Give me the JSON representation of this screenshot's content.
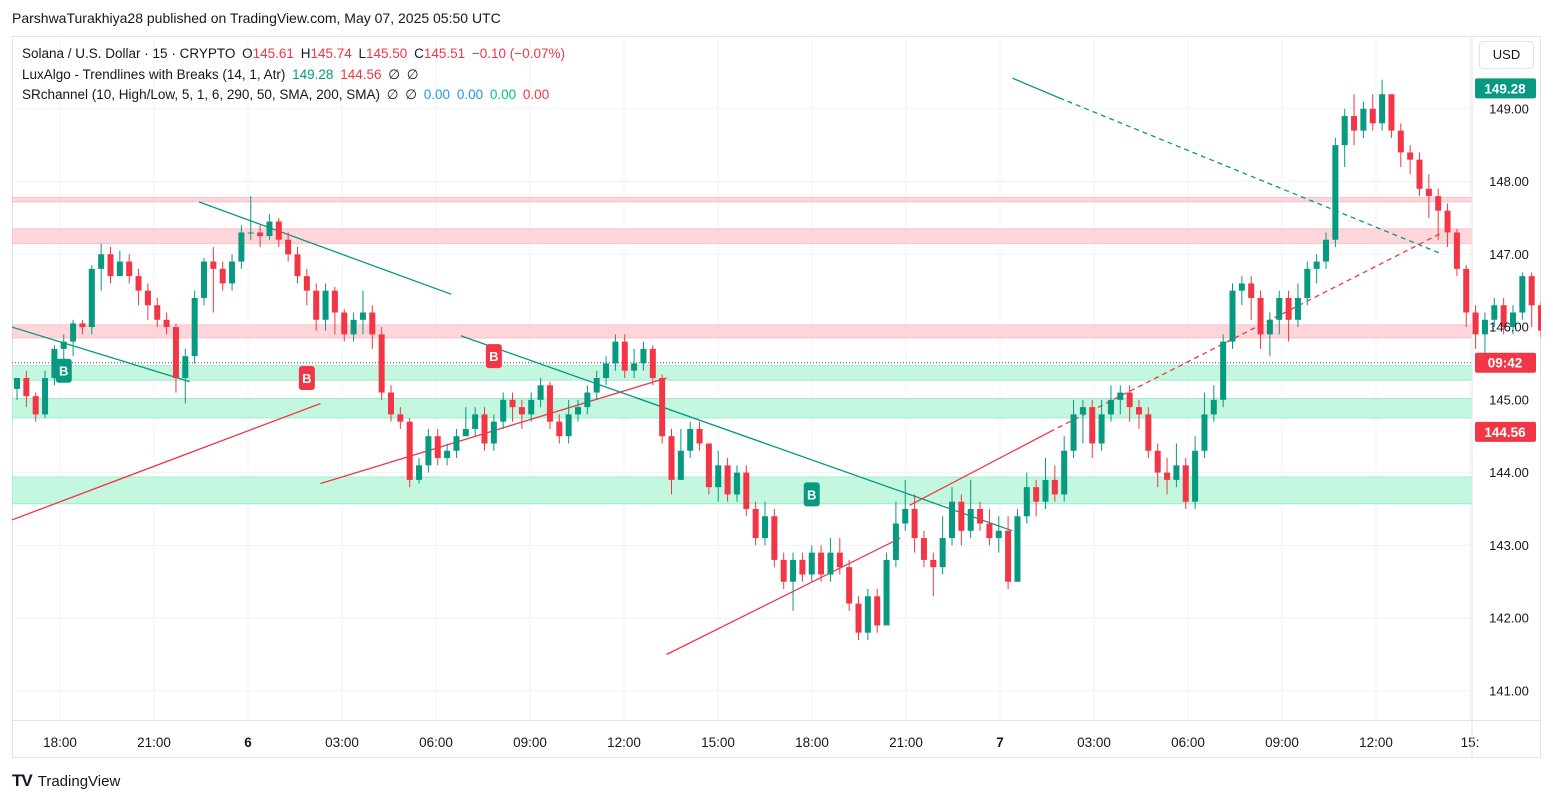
{
  "header": {
    "published": "ParshwaTurakhiya28 published on TradingView.com, May 07, 2025 05:50 UTC"
  },
  "legend": {
    "symbol": "Solana / U.S. Dollar · 15 · CRYPTO",
    "o_label": "O",
    "o": "145.61",
    "h_label": "H",
    "h": "145.74",
    "l_label": "L",
    "l": "145.50",
    "c_label": "C",
    "c": "145.51",
    "change": "−0.10 (−0.07%)",
    "ind1": "LuxAlgo - Trendlines with Breaks (14, 1, Atr)",
    "ind1_v1": "149.28",
    "ind1_v2": "144.56",
    "ind1_v3": "∅",
    "ind1_v4": "∅",
    "ind2": "SRchannel (10, High/Low, 5, 1, 6, 290, 50, SMA, 200, SMA)",
    "ind2_v1": "∅",
    "ind2_v2": "∅",
    "ind2_v3": "0.00",
    "ind2_v4": "0.00",
    "ind2_v5": "0.00",
    "ind2_v6": "0.00"
  },
  "currency": "USD",
  "footer": {
    "brand": "TradingView",
    "logo": "TV"
  },
  "colors": {
    "up": "#089981",
    "down": "#f23645",
    "res_zone": "#ffcdd2",
    "sup_zone": "#b9f6d9",
    "grid": "#f0f3fa"
  },
  "chart_data": {
    "type": "candlestick",
    "ylim": [
      140.6,
      150.0
    ],
    "y_ticks": [
      "141.00",
      "142.00",
      "143.00",
      "144.00",
      "145.00",
      "146.00",
      "147.00",
      "148.00",
      "149.00"
    ],
    "x_ticks": [
      "18:00",
      "21:00",
      "6",
      "03:00",
      "06:00",
      "09:00",
      "12:00",
      "15:00",
      "18:00",
      "21:00",
      "7",
      "03:00",
      "06:00",
      "09:00",
      "12:00",
      "15:"
    ],
    "price_labels": [
      {
        "text": "149.28",
        "value": 149.28,
        "color": "#089981"
      },
      {
        "text": "09:42",
        "value": 145.51,
        "color": "#f23645"
      },
      {
        "text": "144.56",
        "value": 144.56,
        "color": "#f23645"
      }
    ],
    "last_price": 145.51,
    "resistance_zones": [
      [
        147.72,
        147.78
      ],
      [
        147.15,
        147.35
      ],
      [
        145.85,
        146.03
      ]
    ],
    "support_zones": [
      [
        145.27,
        145.47
      ],
      [
        144.75,
        145.02
      ],
      [
        143.57,
        143.94
      ]
    ],
    "breakout_labels": [
      {
        "text": "B",
        "kind": "bull",
        "candle": 5,
        "price": 145.4
      },
      {
        "text": "B",
        "kind": "bear",
        "candle": 31,
        "price": 145.3
      },
      {
        "text": "B",
        "kind": "bear",
        "candle": 51,
        "price": 145.6
      },
      {
        "text": "B",
        "kind": "bull",
        "candle": 85,
        "price": 143.7
      }
    ],
    "trendlines": [
      {
        "color": "#089981",
        "dash": false,
        "from": [
          0,
          146.0
        ],
        "to": [
          19,
          145.25
        ]
      },
      {
        "color": "#089981",
        "dash": false,
        "from": [
          20,
          147.72
        ],
        "to": [
          47,
          146.45
        ]
      },
      {
        "color": "#089981",
        "dash": false,
        "from": [
          48,
          145.88
        ],
        "to": [
          107,
          143.2
        ]
      },
      {
        "color": "#089981",
        "dash": false,
        "from": [
          107,
          149.42
        ],
        "to": [
          112,
          149.15
        ]
      },
      {
        "color": "#089981",
        "dash": true,
        "from": [
          112,
          149.15
        ],
        "to": [
          153,
          147.0
        ]
      },
      {
        "color": "#f23645",
        "dash": false,
        "from": [
          0,
          143.35
        ],
        "to": [
          33,
          144.95
        ]
      },
      {
        "color": "#f23645",
        "dash": false,
        "from": [
          33,
          143.85
        ],
        "to": [
          70,
          145.3
        ]
      },
      {
        "color": "#f23645",
        "dash": false,
        "from": [
          70,
          141.5
        ],
        "to": [
          95,
          143.1
        ]
      },
      {
        "color": "#f23645",
        "dash": false,
        "from": [
          96,
          143.55
        ],
        "to": [
          111,
          144.56
        ]
      },
      {
        "color": "#f23645",
        "dash": true,
        "from": [
          111,
          144.56
        ],
        "to": [
          153,
          147.3
        ]
      }
    ],
    "candles": [
      [
        145.15,
        145.3,
        145.3,
        145.0
      ],
      [
        145.3,
        145.05,
        145.4,
        144.9
      ],
      [
        145.05,
        144.8,
        145.1,
        144.7
      ],
      [
        144.8,
        145.3,
        145.4,
        144.75
      ],
      [
        145.3,
        145.7,
        145.75,
        145.2
      ],
      [
        145.7,
        145.8,
        145.9,
        145.5
      ],
      [
        145.8,
        146.05,
        146.1,
        145.6
      ],
      [
        146.05,
        146.0,
        146.1,
        145.9
      ],
      [
        146.0,
        146.8,
        146.85,
        145.9
      ],
      [
        146.8,
        147.0,
        147.15,
        146.5
      ],
      [
        147.0,
        146.7,
        147.1,
        146.6
      ],
      [
        146.7,
        146.9,
        147.05,
        146.7
      ],
      [
        146.9,
        146.7,
        147.0,
        146.6
      ],
      [
        146.7,
        146.5,
        146.8,
        146.3
      ],
      [
        146.5,
        146.3,
        146.6,
        146.1
      ],
      [
        146.3,
        146.1,
        146.4,
        146.0
      ],
      [
        146.1,
        146.0,
        146.2,
        145.9
      ],
      [
        146.0,
        145.3,
        146.05,
        145.1
      ],
      [
        145.3,
        145.6,
        145.7,
        144.95
      ],
      [
        145.6,
        146.4,
        146.5,
        145.5
      ],
      [
        146.4,
        146.9,
        146.95,
        146.3
      ],
      [
        146.9,
        146.8,
        147.1,
        146.2
      ],
      [
        146.8,
        146.6,
        146.9,
        146.5
      ],
      [
        146.6,
        146.9,
        147.0,
        146.5
      ],
      [
        146.9,
        147.3,
        147.4,
        146.8
      ],
      [
        147.3,
        147.3,
        147.8,
        147.2
      ],
      [
        147.3,
        147.25,
        147.4,
        147.1
      ],
      [
        147.25,
        147.45,
        147.55,
        147.2
      ],
      [
        147.45,
        147.2,
        147.5,
        147.1
      ],
      [
        147.2,
        147.0,
        147.3,
        146.9
      ],
      [
        147.0,
        146.7,
        147.1,
        146.6
      ],
      [
        146.7,
        146.5,
        146.8,
        146.3
      ],
      [
        146.5,
        146.1,
        146.6,
        145.95
      ],
      [
        146.1,
        146.5,
        146.6,
        145.95
      ],
      [
        146.5,
        146.2,
        146.55,
        145.9
      ],
      [
        146.2,
        145.9,
        146.25,
        145.8
      ],
      [
        145.9,
        146.1,
        146.2,
        145.8
      ],
      [
        146.1,
        146.2,
        146.5,
        145.9
      ],
      [
        146.2,
        145.9,
        146.3,
        145.7
      ],
      [
        145.9,
        145.1,
        146.0,
        145.0
      ],
      [
        145.1,
        144.8,
        145.2,
        144.7
      ],
      [
        144.8,
        144.7,
        144.9,
        144.6
      ],
      [
        144.7,
        143.9,
        144.75,
        143.8
      ],
      [
        143.9,
        144.1,
        144.2,
        143.85
      ],
      [
        144.1,
        144.5,
        144.6,
        144.0
      ],
      [
        144.5,
        144.2,
        144.6,
        144.1
      ],
      [
        144.2,
        144.3,
        144.4,
        144.1
      ],
      [
        144.3,
        144.5,
        144.6,
        144.2
      ],
      [
        144.5,
        144.6,
        144.9,
        144.5
      ],
      [
        144.6,
        144.8,
        144.9,
        144.5
      ],
      [
        144.8,
        144.4,
        144.9,
        144.3
      ],
      [
        144.4,
        144.7,
        144.8,
        144.3
      ],
      [
        144.7,
        145.0,
        145.1,
        144.6
      ],
      [
        145.0,
        144.9,
        145.1,
        144.7
      ],
      [
        144.9,
        144.8,
        145.0,
        144.6
      ],
      [
        144.8,
        145.0,
        145.1,
        144.7
      ],
      [
        145.0,
        145.2,
        145.3,
        144.9
      ],
      [
        145.2,
        144.7,
        145.25,
        144.6
      ],
      [
        144.7,
        144.5,
        144.8,
        144.4
      ],
      [
        144.5,
        144.8,
        145.0,
        144.4
      ],
      [
        144.8,
        144.9,
        145.0,
        144.7
      ],
      [
        144.9,
        145.1,
        145.2,
        144.8
      ],
      [
        145.1,
        145.3,
        145.4,
        145.0
      ],
      [
        145.3,
        145.5,
        145.6,
        145.2
      ],
      [
        145.5,
        145.8,
        145.9,
        145.4
      ],
      [
        145.8,
        145.4,
        145.9,
        145.3
      ],
      [
        145.4,
        145.5,
        145.7,
        145.3
      ],
      [
        145.5,
        145.7,
        145.8,
        145.4
      ],
      [
        145.7,
        145.3,
        145.75,
        145.2
      ],
      [
        145.3,
        144.5,
        145.35,
        144.4
      ],
      [
        144.5,
        143.9,
        144.6,
        143.7
      ],
      [
        143.9,
        144.3,
        144.6,
        143.9
      ],
      [
        144.3,
        144.6,
        144.7,
        144.2
      ],
      [
        144.6,
        144.4,
        144.7,
        144.3
      ],
      [
        144.4,
        143.8,
        144.4,
        143.7
      ],
      [
        143.8,
        144.1,
        144.3,
        143.6
      ],
      [
        144.1,
        143.7,
        144.2,
        143.6
      ],
      [
        143.7,
        144.0,
        144.1,
        143.6
      ],
      [
        144.0,
        143.5,
        144.1,
        143.4
      ],
      [
        143.5,
        143.1,
        143.6,
        143.0
      ],
      [
        143.1,
        143.4,
        143.6,
        143.0
      ],
      [
        143.4,
        142.8,
        143.5,
        142.7
      ],
      [
        142.8,
        142.5,
        142.9,
        142.4
      ],
      [
        142.5,
        142.8,
        142.9,
        142.1
      ],
      [
        142.8,
        142.6,
        142.9,
        142.5
      ],
      [
        142.6,
        142.9,
        143.0,
        142.5
      ],
      [
        142.9,
        142.6,
        143.0,
        142.5
      ],
      [
        142.6,
        142.9,
        143.1,
        142.5
      ],
      [
        142.9,
        142.7,
        143.1,
        142.6
      ],
      [
        142.7,
        142.2,
        142.8,
        142.1
      ],
      [
        142.2,
        141.8,
        142.3,
        141.7
      ],
      [
        141.8,
        142.3,
        142.4,
        141.7
      ],
      [
        142.3,
        141.9,
        142.4,
        141.8
      ],
      [
        141.9,
        142.8,
        142.9,
        141.9
      ],
      [
        142.8,
        143.3,
        143.6,
        142.7
      ],
      [
        143.3,
        143.5,
        143.9,
        143.2
      ],
      [
        143.5,
        143.1,
        143.7,
        142.9
      ],
      [
        143.1,
        142.8,
        143.2,
        142.7
      ],
      [
        142.8,
        142.7,
        142.9,
        142.3
      ],
      [
        142.7,
        143.1,
        143.4,
        142.6
      ],
      [
        143.1,
        143.6,
        143.8,
        143.0
      ],
      [
        143.6,
        143.2,
        143.7,
        143.0
      ],
      [
        143.2,
        143.5,
        143.9,
        143.1
      ],
      [
        143.5,
        143.3,
        143.6,
        143.2
      ],
      [
        143.3,
        143.1,
        143.5,
        143.0
      ],
      [
        143.1,
        143.2,
        143.4,
        142.9
      ],
      [
        143.2,
        142.5,
        143.4,
        142.4
      ],
      [
        142.5,
        143.4,
        143.5,
        142.5
      ],
      [
        143.4,
        143.8,
        144.0,
        143.3
      ],
      [
        143.8,
        143.6,
        143.9,
        143.4
      ],
      [
        143.6,
        143.9,
        144.2,
        143.5
      ],
      [
        143.9,
        143.7,
        144.1,
        143.6
      ],
      [
        143.7,
        144.3,
        144.5,
        143.6
      ],
      [
        144.3,
        144.8,
        145.0,
        144.2
      ],
      [
        144.8,
        144.9,
        145.0,
        144.4
      ],
      [
        144.9,
        144.4,
        145.0,
        144.2
      ],
      [
        144.4,
        144.8,
        145.0,
        144.3
      ],
      [
        144.8,
        145.0,
        145.2,
        144.7
      ],
      [
        145.0,
        145.1,
        145.2,
        144.8
      ],
      [
        145.1,
        144.9,
        145.2,
        144.7
      ],
      [
        144.9,
        144.8,
        145.0,
        144.6
      ],
      [
        144.8,
        144.3,
        144.9,
        144.2
      ],
      [
        144.3,
        144.0,
        144.4,
        143.8
      ],
      [
        144.0,
        143.9,
        144.2,
        143.7
      ],
      [
        143.9,
        144.1,
        144.4,
        143.8
      ],
      [
        144.1,
        143.6,
        144.2,
        143.5
      ],
      [
        143.6,
        144.3,
        144.5,
        143.5
      ],
      [
        144.3,
        144.8,
        145.1,
        144.2
      ],
      [
        144.8,
        145.0,
        145.2,
        144.7
      ],
      [
        145.0,
        145.8,
        145.9,
        144.9
      ],
      [
        145.8,
        146.5,
        146.6,
        145.7
      ],
      [
        146.5,
        146.6,
        146.7,
        146.3
      ],
      [
        146.6,
        146.4,
        146.7,
        146.1
      ],
      [
        146.4,
        145.9,
        146.5,
        145.7
      ],
      [
        145.9,
        146.1,
        146.2,
        145.6
      ],
      [
        146.1,
        146.4,
        146.5,
        145.9
      ],
      [
        146.4,
        146.1,
        146.5,
        145.8
      ],
      [
        146.1,
        146.4,
        146.6,
        146.0
      ],
      [
        146.4,
        146.8,
        146.9,
        146.3
      ],
      [
        146.8,
        146.9,
        147.0,
        146.6
      ],
      [
        146.9,
        147.2,
        147.3,
        146.8
      ],
      [
        147.2,
        148.5,
        148.6,
        147.1
      ],
      [
        148.5,
        148.9,
        149.0,
        148.2
      ],
      [
        148.9,
        148.7,
        149.2,
        148.5
      ],
      [
        148.7,
        149.0,
        149.1,
        148.6
      ],
      [
        149.0,
        148.8,
        149.2,
        148.7
      ],
      [
        148.8,
        149.2,
        149.4,
        148.7
      ],
      [
        149.2,
        148.7,
        149.2,
        148.6
      ],
      [
        148.7,
        148.4,
        148.8,
        148.2
      ],
      [
        148.4,
        148.3,
        148.5,
        148.1
      ],
      [
        148.3,
        147.9,
        148.4,
        147.8
      ],
      [
        147.9,
        147.8,
        148.1,
        147.5
      ],
      [
        147.8,
        147.6,
        147.9,
        147.2
      ],
      [
        147.6,
        147.3,
        147.7,
        147.1
      ],
      [
        147.3,
        146.8,
        147.35,
        146.7
      ],
      [
        146.8,
        146.2,
        146.85,
        146.0
      ],
      [
        146.2,
        145.9,
        146.3,
        145.7
      ],
      [
        145.9,
        146.1,
        146.2,
        145.5
      ],
      [
        146.1,
        146.3,
        146.4,
        146.0
      ],
      [
        146.3,
        146.0,
        146.4,
        145.9
      ],
      [
        146.0,
        146.2,
        146.3,
        145.9
      ],
      [
        146.2,
        146.7,
        146.75,
        146.1
      ],
      [
        146.7,
        146.3,
        146.75,
        146.0
      ],
      [
        146.3,
        145.95,
        146.35,
        145.85
      ],
      [
        145.95,
        146.15,
        146.25,
        145.9
      ],
      [
        146.15,
        145.9,
        146.2,
        145.85
      ],
      [
        145.9,
        146.1,
        146.2,
        145.8
      ],
      [
        146.1,
        145.85,
        146.15,
        145.75
      ],
      [
        145.85,
        145.61,
        145.95,
        145.55
      ],
      [
        145.61,
        145.51,
        145.74,
        145.5
      ]
    ]
  }
}
